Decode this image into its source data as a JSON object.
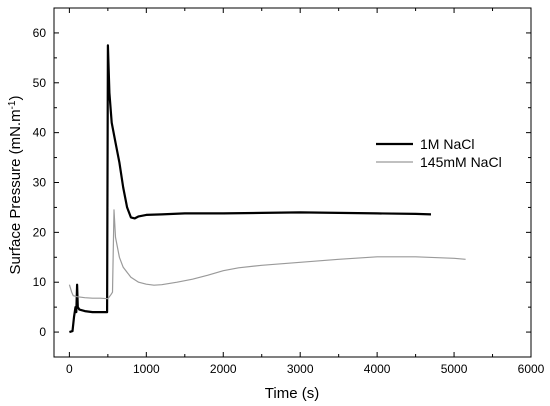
{
  "chart_data": {
    "type": "line",
    "title": "",
    "xlabel": "Time (s)",
    "ylabel_main": "Surface Pressure (mN.m",
    "ylabel_sup": "-1",
    "ylabel_close": ")",
    "xlim": [
      -200,
      6000
    ],
    "ylim": [
      -5,
      65
    ],
    "xticks": [
      0,
      1000,
      2000,
      3000,
      4000,
      5000,
      6000
    ],
    "yticks": [
      0,
      10,
      20,
      30,
      40,
      50,
      60
    ],
    "legend_position": "right",
    "series": [
      {
        "name": "1M NaCl",
        "color": "#000000",
        "points": [
          [
            0,
            0
          ],
          [
            40,
            0.2
          ],
          [
            60,
            3
          ],
          [
            80,
            5
          ],
          [
            90,
            4
          ],
          [
            100,
            9.5
          ],
          [
            110,
            5
          ],
          [
            130,
            4.5
          ],
          [
            200,
            4.2
          ],
          [
            300,
            4
          ],
          [
            400,
            4
          ],
          [
            490,
            4
          ],
          [
            500,
            57.5
          ],
          [
            520,
            48
          ],
          [
            550,
            42
          ],
          [
            600,
            38
          ],
          [
            650,
            34
          ],
          [
            700,
            29
          ],
          [
            750,
            25
          ],
          [
            800,
            23
          ],
          [
            850,
            22.8
          ],
          [
            900,
            23.2
          ],
          [
            1000,
            23.5
          ],
          [
            1200,
            23.6
          ],
          [
            1500,
            23.8
          ],
          [
            2000,
            23.8
          ],
          [
            2500,
            23.9
          ],
          [
            3000,
            24
          ],
          [
            3500,
            23.9
          ],
          [
            4000,
            23.8
          ],
          [
            4500,
            23.7
          ],
          [
            4700,
            23.6
          ]
        ]
      },
      {
        "name": "145mM NaCl",
        "color": "#9a9a9a",
        "points": [
          [
            0,
            9.5
          ],
          [
            30,
            8
          ],
          [
            50,
            7.3
          ],
          [
            100,
            7.1
          ],
          [
            200,
            6.9
          ],
          [
            300,
            6.8
          ],
          [
            400,
            6.8
          ],
          [
            500,
            6.7
          ],
          [
            540,
            7.5
          ],
          [
            560,
            8
          ],
          [
            580,
            24.5
          ],
          [
            600,
            19
          ],
          [
            650,
            15
          ],
          [
            700,
            13
          ],
          [
            800,
            11
          ],
          [
            900,
            10
          ],
          [
            1000,
            9.6
          ],
          [
            1100,
            9.4
          ],
          [
            1200,
            9.5
          ],
          [
            1400,
            10
          ],
          [
            1600,
            10.6
          ],
          [
            1800,
            11.4
          ],
          [
            2000,
            12.3
          ],
          [
            2200,
            12.9
          ],
          [
            2500,
            13.4
          ],
          [
            3000,
            14
          ],
          [
            3500,
            14.6
          ],
          [
            4000,
            15.1
          ],
          [
            4500,
            15.1
          ],
          [
            5000,
            14.8
          ],
          [
            5150,
            14.6
          ]
        ]
      }
    ]
  }
}
